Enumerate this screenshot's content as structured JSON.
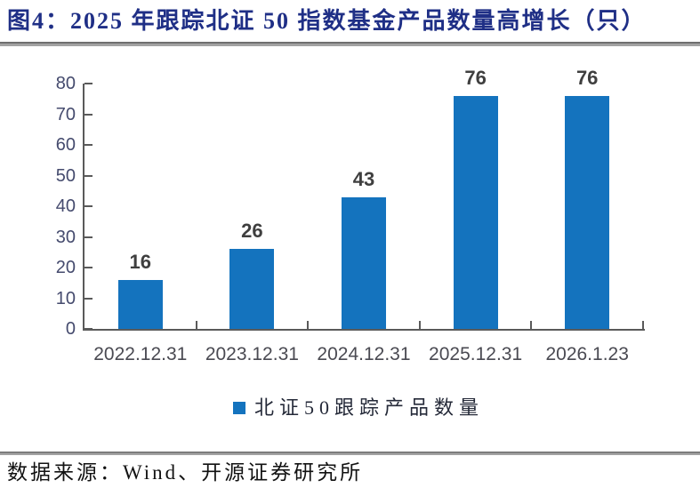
{
  "header": {
    "title": "图4：2025 年跟踪北证 50 指数基金产品数量高增长（只）"
  },
  "legend": {
    "label": "北证50跟踪产品数量"
  },
  "footer": {
    "source": "数据来源：Wind、开源证券研究所"
  },
  "colors": {
    "bar": "#1473be",
    "title": "#1f2f86",
    "axis": "#5a5a5a",
    "rule": "#8f8f8f"
  },
  "chart_data": {
    "type": "bar",
    "title": "图4：2025 年跟踪北证 50 指数基金产品数量高增长（只）",
    "categories": [
      "2022.12.31",
      "2023.12.31",
      "2024.12.31",
      "2025.12.31",
      "2026.1.23"
    ],
    "values": [
      16,
      26,
      43,
      76,
      76
    ],
    "series": [
      {
        "name": "北证50跟踪产品数量",
        "values": [
          16,
          26,
          43,
          76,
          76
        ]
      }
    ],
    "xlabel": "",
    "ylabel": "",
    "ylim": [
      0,
      80
    ],
    "ytick_step": 10,
    "yticks": [
      0,
      10,
      20,
      30,
      40,
      50,
      60,
      70,
      80
    ],
    "grid": false,
    "legend_position": "bottom",
    "data_labels_shown": true
  }
}
